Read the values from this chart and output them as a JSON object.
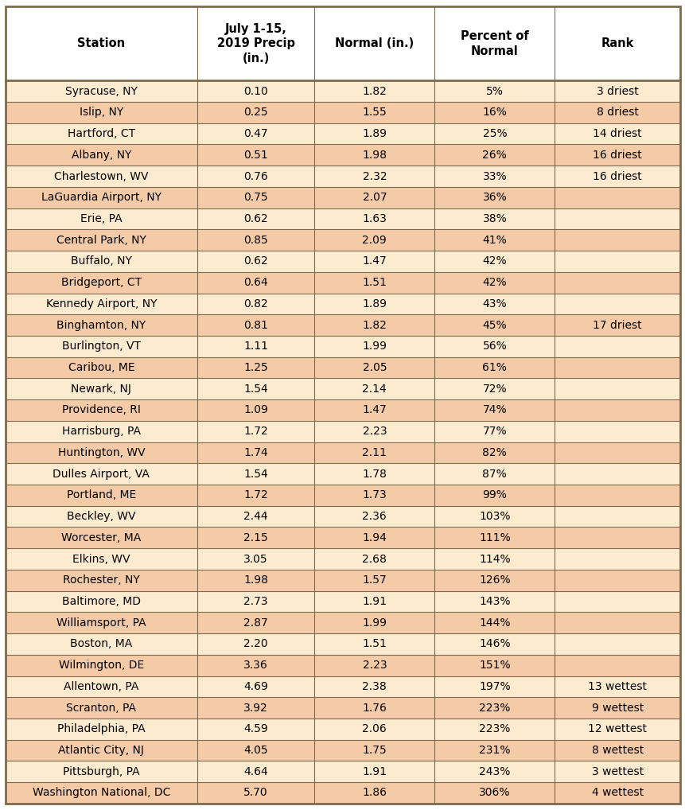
{
  "headers": [
    "Station",
    "July 1-15,\n2019 Precip\n(in.)",
    "Normal (in.)",
    "Percent of\nNormal",
    "Rank"
  ],
  "rows": [
    [
      "Syracuse, NY",
      "0.10",
      "1.82",
      "5%",
      "3 driest"
    ],
    [
      "Islip, NY",
      "0.25",
      "1.55",
      "16%",
      "8 driest"
    ],
    [
      "Hartford, CT",
      "0.47",
      "1.89",
      "25%",
      "14 driest"
    ],
    [
      "Albany, NY",
      "0.51",
      "1.98",
      "26%",
      "16 driest"
    ],
    [
      "Charlestown, WV",
      "0.76",
      "2.32",
      "33%",
      "16 driest"
    ],
    [
      "LaGuardia Airport, NY",
      "0.75",
      "2.07",
      "36%",
      ""
    ],
    [
      "Erie, PA",
      "0.62",
      "1.63",
      "38%",
      ""
    ],
    [
      "Central Park, NY",
      "0.85",
      "2.09",
      "41%",
      ""
    ],
    [
      "Buffalo, NY",
      "0.62",
      "1.47",
      "42%",
      ""
    ],
    [
      "Bridgeport, CT",
      "0.64",
      "1.51",
      "42%",
      ""
    ],
    [
      "Kennedy Airport, NY",
      "0.82",
      "1.89",
      "43%",
      ""
    ],
    [
      "Binghamton, NY",
      "0.81",
      "1.82",
      "45%",
      "17 driest"
    ],
    [
      "Burlington, VT",
      "1.11",
      "1.99",
      "56%",
      ""
    ],
    [
      "Caribou, ME",
      "1.25",
      "2.05",
      "61%",
      ""
    ],
    [
      "Newark, NJ",
      "1.54",
      "2.14",
      "72%",
      ""
    ],
    [
      "Providence, RI",
      "1.09",
      "1.47",
      "74%",
      ""
    ],
    [
      "Harrisburg, PA",
      "1.72",
      "2.23",
      "77%",
      ""
    ],
    [
      "Huntington, WV",
      "1.74",
      "2.11",
      "82%",
      ""
    ],
    [
      "Dulles Airport, VA",
      "1.54",
      "1.78",
      "87%",
      ""
    ],
    [
      "Portland, ME",
      "1.72",
      "1.73",
      "99%",
      ""
    ],
    [
      "Beckley, WV",
      "2.44",
      "2.36",
      "103%",
      ""
    ],
    [
      "Worcester, MA",
      "2.15",
      "1.94",
      "111%",
      ""
    ],
    [
      "Elkins, WV",
      "3.05",
      "2.68",
      "114%",
      ""
    ],
    [
      "Rochester, NY",
      "1.98",
      "1.57",
      "126%",
      ""
    ],
    [
      "Baltimore, MD",
      "2.73",
      "1.91",
      "143%",
      ""
    ],
    [
      "Williamsport, PA",
      "2.87",
      "1.99",
      "144%",
      ""
    ],
    [
      "Boston, MA",
      "2.20",
      "1.51",
      "146%",
      ""
    ],
    [
      "Wilmington, DE",
      "3.36",
      "2.23",
      "151%",
      ""
    ],
    [
      "Allentown, PA",
      "4.69",
      "2.38",
      "197%",
      "13 wettest"
    ],
    [
      "Scranton, PA",
      "3.92",
      "1.76",
      "223%",
      "9 wettest"
    ],
    [
      "Philadelphia, PA",
      "4.59",
      "2.06",
      "223%",
      "12 wettest"
    ],
    [
      "Atlantic City, NJ",
      "4.05",
      "1.75",
      "231%",
      "8 wettest"
    ],
    [
      "Pittsburgh, PA",
      "4.64",
      "1.91",
      "243%",
      "3 wettest"
    ],
    [
      "Washington National, DC",
      "5.70",
      "1.86",
      "306%",
      "4 wettest"
    ]
  ],
  "header_bg": "#ffffff",
  "row_bg_even": "#fdebd0",
  "row_bg_odd": "#f5cba7",
  "border_color": "#7d6b4f",
  "col_props": [
    0.284,
    0.174,
    0.178,
    0.178,
    0.186
  ],
  "header_font_size": 10.5,
  "row_font_size": 10.0,
  "fig_width": 8.62,
  "fig_height": 10.18,
  "dpi": 100
}
